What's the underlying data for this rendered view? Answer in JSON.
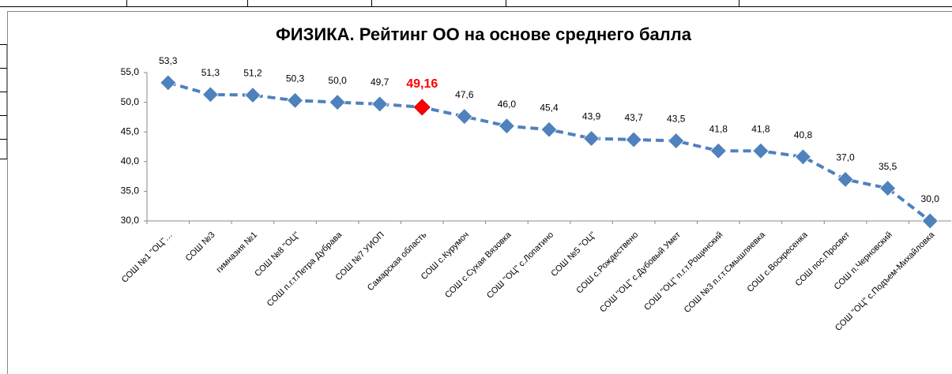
{
  "chart_data": {
    "type": "line",
    "title": "ФИЗИКА. Рейтинг ОО на основе среднего балла",
    "categories": [
      "СОШ №1 \"ОЦ\"…",
      "СОШ №3",
      "гимназия №1",
      "СОШ №8 \"ОЦ\"",
      "СОШ п.г.т.Петра Дубрава",
      "СОШ №7 УИОП",
      "Самарская область",
      "СОШ с.Курумоч",
      "СОШ с.Сухая Вязовка",
      "СОШ \"ОЦ\" с.Лопатино",
      "СОШ №5 \"ОЦ\"",
      "СОШ с.Рождествено",
      "СОШ \"ОЦ\" с.Дубовый Умет",
      "СОШ \"ОЦ\" п.г.т.Рощинский",
      "СОШ №3 п.г.т.Смышляевка",
      "СОШ с.Воскресенка",
      "СОШ пос.Просвет",
      "СОШ п.Черновский",
      "СОШ \"ОЦ\" с.Подъем-Михайловка"
    ],
    "series": [
      {
        "color": "#4f81bd",
        "values": [
          53.3,
          51.3,
          51.2,
          50.3,
          50.0,
          49.7,
          49.16,
          47.6,
          46.0,
          45.4,
          43.9,
          43.7,
          43.5,
          41.8,
          41.8,
          40.8,
          37.0,
          35.5,
          30.0
        ],
        "value_labels": [
          "53,3",
          "51,3",
          "51,2",
          "50,3",
          "50,0",
          "49,7",
          "49,16",
          "47,6",
          "46,0",
          "45,4",
          "43,9",
          "43,7",
          "43,5",
          "41,8",
          "41,8",
          "40,8",
          "37,0",
          "35,5",
          "30,0"
        ],
        "marker_colors": [
          "#4f81bd",
          "#4f81bd",
          "#4f81bd",
          "#4f81bd",
          "#4f81bd",
          "#4f81bd",
          "#ff0000",
          "#4f81bd",
          "#4f81bd",
          "#4f81bd",
          "#4f81bd",
          "#4f81bd",
          "#4f81bd",
          "#4f81bd",
          "#4f81bd",
          "#4f81bd",
          "#4f81bd",
          "#4f81bd",
          "#4f81bd"
        ]
      }
    ],
    "ylim": [
      30,
      55
    ],
    "yticks": [
      {
        "value": 30,
        "label": "30,0"
      },
      {
        "value": 35,
        "label": "35,0"
      },
      {
        "value": 40,
        "label": "40,0"
      },
      {
        "value": 45,
        "label": "45,0"
      },
      {
        "value": 50,
        "label": "50,0"
      },
      {
        "value": 55,
        "label": "55,0"
      }
    ],
    "grid": false
  }
}
